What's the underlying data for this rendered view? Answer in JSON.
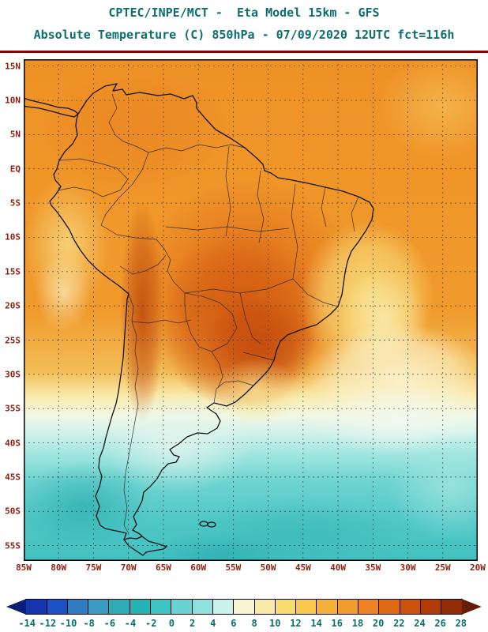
{
  "header": {
    "title_line1": "CPTEC/INPE/MCT -  Eta Model 15km - GFS",
    "title_line2": "Absolute Temperature (C) 850hPa - 07/09/2020 12UTC fct=116h"
  },
  "map": {
    "lat_ticks": [
      "15N",
      "10N",
      "5N",
      "EQ",
      "5S",
      "10S",
      "15S",
      "20S",
      "25S",
      "30S",
      "35S",
      "40S",
      "45S",
      "50S",
      "55S"
    ],
    "lon_ticks": [
      "85W",
      "80W",
      "75W",
      "70W",
      "65W",
      "60W",
      "55W",
      "50W",
      "45W",
      "40W",
      "35W",
      "30W",
      "25W",
      "20W"
    ]
  },
  "colorbar": {
    "tick_labels": [
      "-14",
      "-12",
      "-10",
      "-8",
      "-6",
      "-4",
      "-2",
      "0",
      "2",
      "4",
      "6",
      "8",
      "10",
      "12",
      "14",
      "16",
      "18",
      "20",
      "22",
      "24",
      "26",
      "28"
    ],
    "colors": [
      "#0B1F7A",
      "#1436AE",
      "#1E50C8",
      "#2D7DC0",
      "#3B9AC4",
      "#2FAAB4",
      "#23B3B3",
      "#3FC4C4",
      "#66D2D2",
      "#8EE0DE",
      "#CBF1EC",
      "#FAF3D2",
      "#F9E9A6",
      "#F8DC70",
      "#F7CA4E",
      "#F5B138",
      "#F29B2F",
      "#EE8423",
      "#E16B15",
      "#CD500B",
      "#B23B06",
      "#902B04",
      "#671D02"
    ]
  },
  "chart_data": {
    "type": "heatmap",
    "title": "CPTEC/INPE/MCT -  Eta Model 15km - GFS",
    "subtitle": "Absolute Temperature (C) 850hPa - 07/09/2020 12UTC fct=116h",
    "variable": "Absolute Temperature",
    "unit": "C",
    "level": "850hPa",
    "model": "Eta Model 15km",
    "boundary_conditions": "GFS",
    "init_datetime": "07/09/2020 12UTC",
    "forecast": "fct=116h",
    "x_ticks": [
      "85W",
      "80W",
      "75W",
      "70W",
      "65W",
      "60W",
      "55W",
      "50W",
      "45W",
      "40W",
      "35W",
      "30W",
      "25W",
      "20W"
    ],
    "y_ticks": [
      "15N",
      "10N",
      "5N",
      "EQ",
      "5S",
      "10S",
      "15S",
      "20S",
      "25S",
      "30S",
      "35S",
      "40S",
      "45S",
      "50S",
      "55S"
    ],
    "colorbar_values_c": [
      -14,
      -12,
      -10,
      -8,
      -6,
      -4,
      -2,
      0,
      2,
      4,
      6,
      8,
      10,
      12,
      14,
      16,
      18,
      20,
      22,
      24,
      26,
      28
    ],
    "legend_position": "bottom",
    "grid": "dashed 5-degree lat/lon",
    "field_summary": [
      {
        "region": "Central Brazil / Mato Grosso hot core",
        "approx_value_c": "22 to 26"
      },
      {
        "region": "Andes strip (S Peru / Bolivia / N Chile)",
        "approx_value_c": "22 to 26"
      },
      {
        "region": "Amazon basin and tropical Atlantic",
        "approx_value_c": "16 to 20"
      },
      {
        "region": "East Brazilian coast and adjacent Atlantic",
        "approx_value_c": "8 to 14"
      },
      {
        "region": "Uruguay / Rio de la Plata",
        "approx_value_c": "10 to 14"
      },
      {
        "region": "Subtropical South Atlantic cream band (30S-38S)",
        "approx_value_c": "4 to 8"
      },
      {
        "region": "Patagonia and oceans south of 40S",
        "approx_value_c": "0 to 6"
      }
    ]
  }
}
